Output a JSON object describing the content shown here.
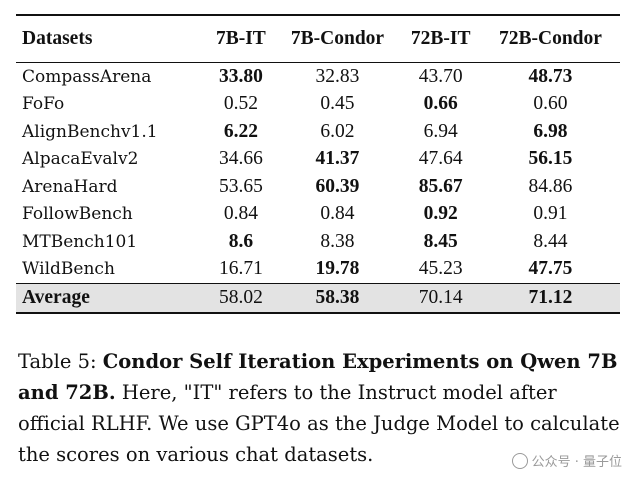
{
  "table": {
    "headers": [
      "Datasets",
      "7B-IT",
      "7B-Condor",
      "72B-IT",
      "72B-Condor"
    ],
    "rows": [
      {
        "dataset": "CompassArena",
        "values": [
          "33.80",
          "32.83",
          "43.70",
          "48.73"
        ],
        "bold": [
          0,
          3
        ]
      },
      {
        "dataset": "FoFo",
        "values": [
          "0.52",
          "0.45",
          "0.66",
          "0.60"
        ],
        "bold": [
          2
        ]
      },
      {
        "dataset": "AlignBenchv1.1",
        "values": [
          "6.22",
          "6.02",
          "6.94",
          "6.98"
        ],
        "bold": [
          0,
          3
        ]
      },
      {
        "dataset": "AlpacaEvalv2",
        "values": [
          "34.66",
          "41.37",
          "47.64",
          "56.15"
        ],
        "bold": [
          1,
          3
        ]
      },
      {
        "dataset": "ArenaHard",
        "values": [
          "53.65",
          "60.39",
          "85.67",
          "84.86"
        ],
        "bold": [
          1,
          2
        ]
      },
      {
        "dataset": "FollowBench",
        "values": [
          "0.84",
          "0.84",
          "0.92",
          "0.91"
        ],
        "bold": [
          2
        ]
      },
      {
        "dataset": "MTBench101",
        "values": [
          "8.6",
          "8.38",
          "8.45",
          "8.44"
        ],
        "bold": [
          0,
          2
        ]
      },
      {
        "dataset": "WildBench",
        "values": [
          "16.71",
          "19.78",
          "45.23",
          "47.75"
        ],
        "bold": [
          1,
          3
        ]
      }
    ],
    "average": {
      "dataset": "Average",
      "values": [
        "58.02",
        "58.38",
        "70.14",
        "71.12"
      ],
      "bold": [
        1,
        3
      ]
    }
  },
  "caption": {
    "label": "Table 5:",
    "bold_title": "Condor Self Iteration Experiments on Qwen 7B and 72B.",
    "text": "Here, \"IT\" refers to the Instruct model after official RLHF. We use GPT4o as the Judge Model to calculate the scores on various chat datasets."
  },
  "watermark": {
    "icon": "wechat-icon",
    "text": "公众号 · 量子位"
  }
}
